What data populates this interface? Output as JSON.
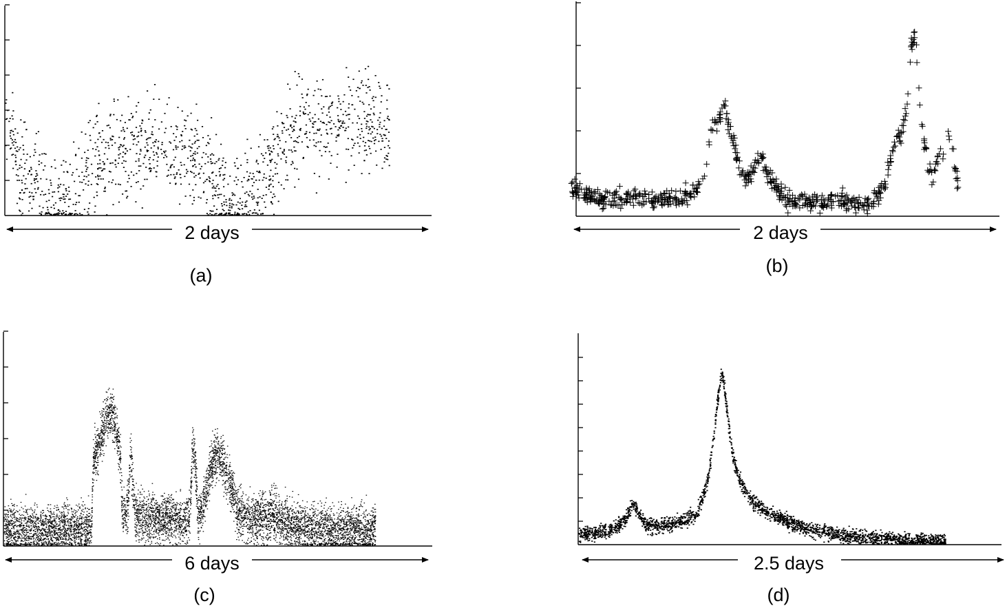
{
  "chart_data": [
    {
      "type": "scatter",
      "panel_label": "(a)",
      "xlabel": "2 days",
      "marker": "dot",
      "x_range_days": [
        0,
        2
      ],
      "y_ticks": 6,
      "trend": {
        "x": [
          0.0,
          0.02,
          0.04,
          0.06,
          0.1,
          0.16,
          0.2,
          0.24,
          0.28,
          0.34,
          0.4,
          0.46,
          0.52,
          0.58,
          0.64,
          0.7,
          0.76,
          0.82,
          0.88,
          0.94,
          1.0,
          1.04,
          1.08,
          1.14,
          1.2,
          1.26,
          1.32,
          1.4,
          1.48,
          1.56,
          1.64,
          1.72,
          1.8,
          1.84
        ],
        "y": [
          0.4,
          0.44,
          0.4,
          0.22,
          0.2,
          0.16,
          0.1,
          0.06,
          0.07,
          0.12,
          0.22,
          0.28,
          0.3,
          0.32,
          0.34,
          0.32,
          0.31,
          0.3,
          0.28,
          0.25,
          0.14,
          0.08,
          0.04,
          0.07,
          0.14,
          0.23,
          0.32,
          0.41,
          0.43,
          0.42,
          0.46,
          0.44,
          0.42,
          0.38
        ],
        "spread": 0.16
      }
    },
    {
      "type": "scatter",
      "panel_label": "(b)",
      "xlabel": "2 days",
      "marker": "plus",
      "x_range_days": [
        0,
        2
      ],
      "y_ticks": 5,
      "trend": {
        "x": [
          0.0,
          0.06,
          0.14,
          0.22,
          0.3,
          0.38,
          0.5,
          0.56,
          0.6,
          0.63,
          0.66,
          0.68,
          0.7,
          0.71,
          0.72,
          0.74,
          0.76,
          0.79,
          0.81,
          0.83,
          0.85,
          0.87,
          0.89,
          0.92,
          1.0,
          1.1,
          1.2,
          1.28,
          1.34,
          1.38,
          1.42,
          1.44,
          1.46,
          1.48,
          1.5,
          1.52,
          1.54,
          1.56,
          1.58,
          1.6,
          1.62,
          1.64,
          1.66,
          1.68,
          1.7,
          1.72,
          1.74,
          1.76,
          1.78,
          1.8,
          1.82
        ],
        "y": [
          0.13,
          0.1,
          0.08,
          0.08,
          0.09,
          0.08,
          0.08,
          0.1,
          0.14,
          0.2,
          0.42,
          0.44,
          0.46,
          0.5,
          0.52,
          0.42,
          0.36,
          0.24,
          0.18,
          0.18,
          0.22,
          0.24,
          0.3,
          0.2,
          0.08,
          0.07,
          0.06,
          0.07,
          0.06,
          0.05,
          0.07,
          0.09,
          0.12,
          0.16,
          0.26,
          0.34,
          0.38,
          0.4,
          0.52,
          0.8,
          0.86,
          0.5,
          0.34,
          0.24,
          0.16,
          0.24,
          0.28,
          0.31,
          0.36,
          0.28,
          0.14
        ],
        "spread": 0.03
      }
    },
    {
      "type": "scatter",
      "panel_label": "(c)",
      "xlabel": "6 days",
      "marker": "dot",
      "x_range_days": [
        0,
        6
      ],
      "y_ticks": 6,
      "trend": {
        "x": [
          0.0,
          0.5,
          1.0,
          1.27,
          1.3,
          1.4,
          1.5,
          1.6,
          1.7,
          1.72,
          1.8,
          1.84,
          1.9,
          2.0,
          2.2,
          2.4,
          2.6,
          2.7,
          2.74,
          2.78,
          2.82,
          2.86,
          2.9,
          3.0,
          3.1,
          3.2,
          3.3,
          3.4,
          3.5,
          3.6,
          3.7,
          3.8,
          3.9,
          4.0,
          4.2,
          4.4,
          4.6,
          4.8,
          5.0,
          5.2,
          5.4
        ],
        "y": [
          0.08,
          0.08,
          0.08,
          0.08,
          0.4,
          0.5,
          0.62,
          0.6,
          0.4,
          0.16,
          0.16,
          0.44,
          0.16,
          0.14,
          0.12,
          0.14,
          0.12,
          0.14,
          0.46,
          0.4,
          0.14,
          0.16,
          0.2,
          0.36,
          0.44,
          0.38,
          0.28,
          0.16,
          0.14,
          0.12,
          0.14,
          0.12,
          0.16,
          0.12,
          0.1,
          0.08,
          0.07,
          0.08,
          0.08,
          0.07,
          0.07
        ],
        "spread": 0.08
      }
    },
    {
      "type": "scatter",
      "panel_label": "(d)",
      "xlabel": "2.5 days",
      "marker": "dot",
      "x_range_days": [
        0,
        2.5
      ],
      "y_ticks": 8,
      "trend": {
        "x": [
          0.0,
          0.1,
          0.2,
          0.26,
          0.3,
          0.34,
          0.38,
          0.44,
          0.5,
          0.56,
          0.6,
          0.66,
          0.72,
          0.76,
          0.78,
          0.8,
          0.82,
          0.84,
          0.86,
          0.9,
          0.96,
          1.04,
          1.14,
          1.3,
          1.5,
          1.7,
          1.9,
          2.05
        ],
        "y": [
          0.05,
          0.06,
          0.08,
          0.12,
          0.2,
          0.14,
          0.09,
          0.09,
          0.1,
          0.11,
          0.12,
          0.15,
          0.3,
          0.55,
          0.72,
          0.82,
          0.7,
          0.55,
          0.42,
          0.3,
          0.22,
          0.16,
          0.12,
          0.07,
          0.04,
          0.03,
          0.02,
          0.02
        ],
        "spread": 0.025
      }
    }
  ]
}
